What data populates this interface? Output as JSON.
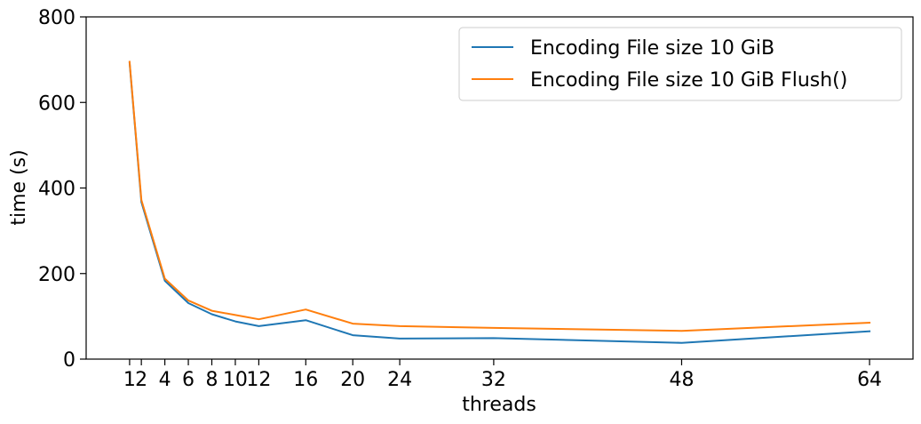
{
  "chart_data": {
    "type": "line",
    "xlabel": "threads",
    "ylabel": "time (s)",
    "xlim": [
      -2.7,
      67.7
    ],
    "ylim": [
      0,
      800
    ],
    "xticks": [
      1,
      2,
      4,
      6,
      8,
      10,
      12,
      16,
      20,
      24,
      32,
      48,
      64
    ],
    "yticks": [
      0,
      200,
      400,
      600,
      800
    ],
    "grid": false,
    "legend_position": "top-right",
    "series": [
      {
        "name": "Encoding File size 10 GiB",
        "color": "#1f77b4",
        "x": [
          1,
          2,
          4,
          6,
          8,
          10,
          12,
          16,
          20,
          24,
          32,
          48,
          64
        ],
        "y": [
          693,
          367,
          183,
          131,
          105,
          88,
          77,
          91,
          56,
          48,
          49,
          38,
          65
        ]
      },
      {
        "name": "Encoding File size 10 GiB Flush()",
        "color": "#ff7f0e",
        "x": [
          1,
          2,
          4,
          6,
          8,
          10,
          12,
          16,
          20,
          24,
          32,
          48,
          64
        ],
        "y": [
          695,
          372,
          188,
          137,
          113,
          103,
          93,
          116,
          83,
          77,
          73,
          66,
          85
        ]
      }
    ]
  }
}
